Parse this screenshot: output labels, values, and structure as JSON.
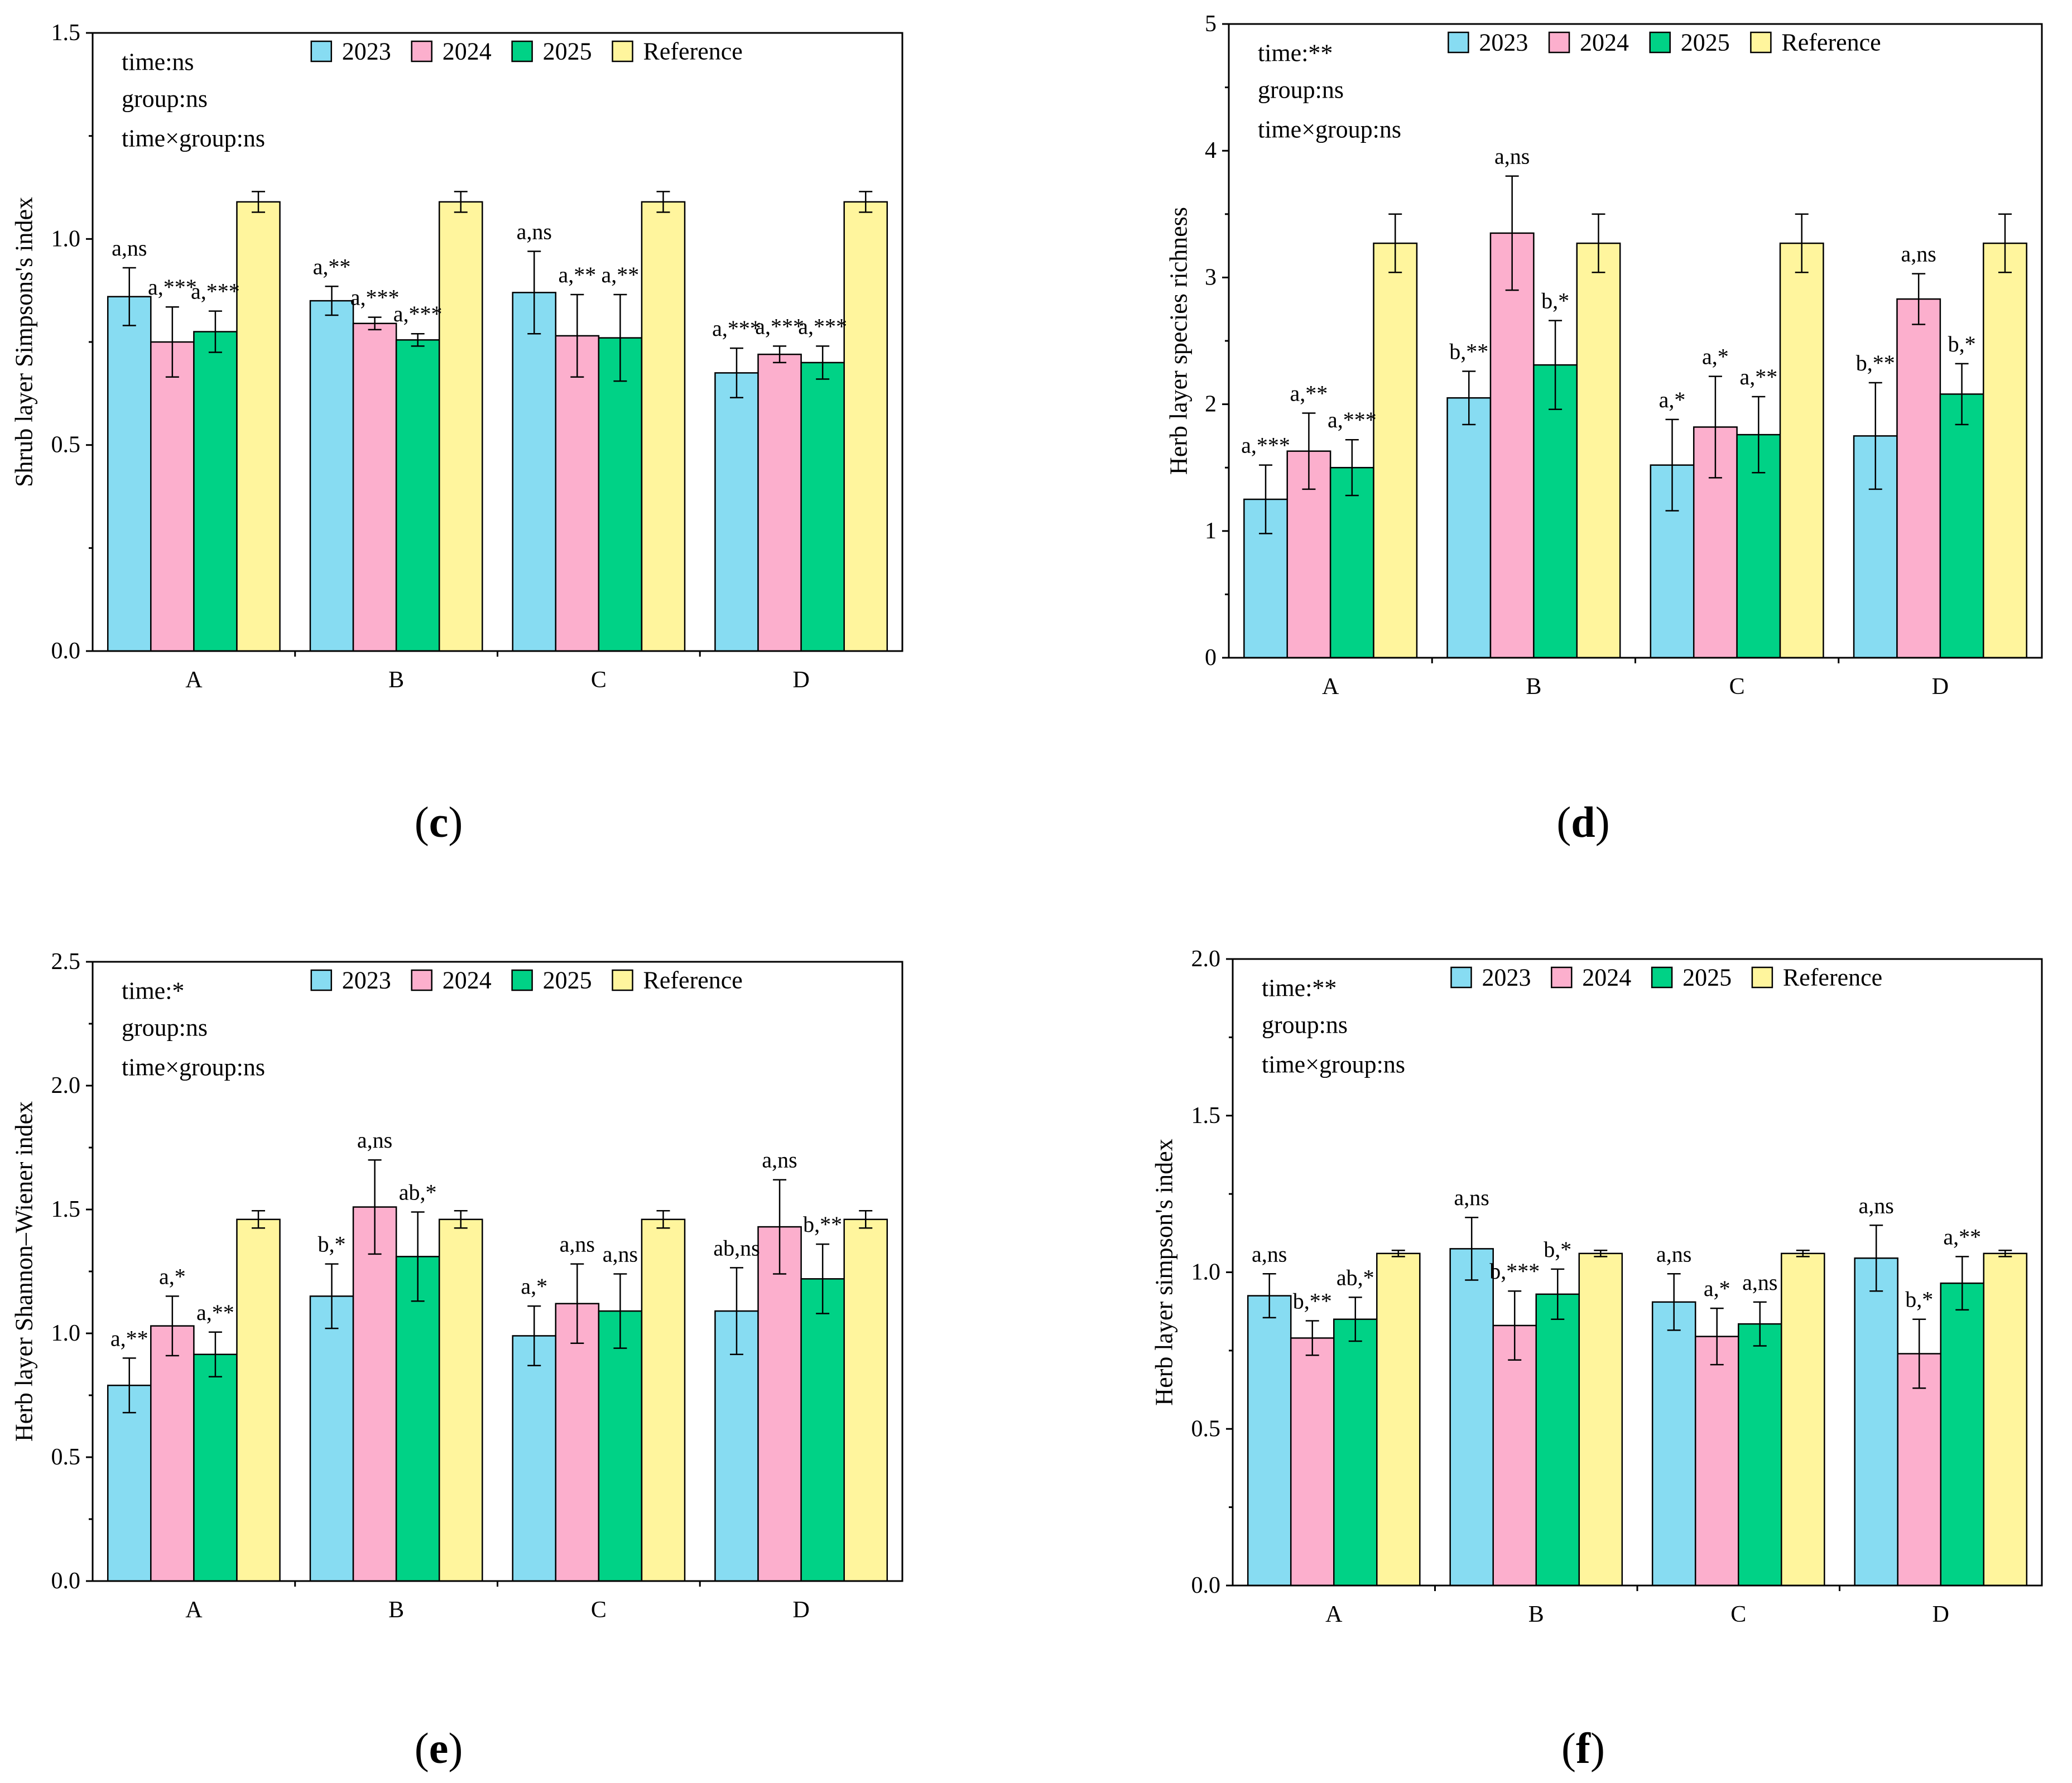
{
  "chart_data": [
    {
      "type": "bar",
      "panel_label": "(c)",
      "ylabel": "Shrub layer Simpsons's index",
      "ylim": [
        0,
        1.5
      ],
      "yticks": [
        "0.0",
        "0.5",
        "1.0",
        "1.5"
      ],
      "minor_step": 0.25,
      "categories": [
        "A",
        "B",
        "C",
        "D"
      ],
      "stats": [
        "time:ns",
        "group:ns",
        "time×group:ns"
      ],
      "series": [
        {
          "name": "2023",
          "color": "#87DCF2",
          "values": [
            0.86,
            0.85,
            0.87,
            0.675
          ],
          "errors": [
            0.07,
            0.035,
            0.1,
            0.06
          ],
          "labels": [
            "a,ns",
            "a,**",
            "a,ns",
            "a,***"
          ]
        },
        {
          "name": "2024",
          "color": "#FCAFCD",
          "values": [
            0.75,
            0.795,
            0.765,
            0.72
          ],
          "errors": [
            0.085,
            0.015,
            0.1,
            0.02
          ],
          "labels": [
            "a,***",
            "a,***",
            "a,**",
            "a,***"
          ]
        },
        {
          "name": "2025",
          "color": "#00D286",
          "values": [
            0.775,
            0.755,
            0.76,
            0.7
          ],
          "errors": [
            0.05,
            0.015,
            0.105,
            0.04
          ],
          "labels": [
            "a,***",
            "a,***",
            "a,**",
            "a,***"
          ]
        },
        {
          "name": "Reference",
          "color": "#FFF59D",
          "values": [
            1.09,
            1.09,
            1.09,
            1.09
          ],
          "errors": [
            0.025,
            0.025,
            0.025,
            0.025
          ]
        }
      ]
    },
    {
      "type": "bar",
      "panel_label": "(d)",
      "ylabel": "Herb layer species richness",
      "ylim": [
        0,
        5
      ],
      "yticks": [
        "0",
        "1",
        "2",
        "3",
        "4",
        "5"
      ],
      "minor_step": 0.5,
      "categories": [
        "A",
        "B",
        "C",
        "D"
      ],
      "stats": [
        "time:**",
        "group:ns",
        "time×group:ns"
      ],
      "series": [
        {
          "name": "2023",
          "color": "#87DCF2",
          "values": [
            1.25,
            2.05,
            1.52,
            1.75
          ],
          "errors": [
            0.27,
            0.21,
            0.36,
            0.42
          ],
          "labels": [
            "a,***",
            "b,**",
            "a,*",
            "b,**"
          ]
        },
        {
          "name": "2024",
          "color": "#FCAFCD",
          "values": [
            1.63,
            3.35,
            1.82,
            2.83
          ],
          "errors": [
            0.3,
            0.45,
            0.4,
            0.2
          ],
          "labels": [
            "a,**",
            "a,ns",
            "a,*",
            "a,ns"
          ]
        },
        {
          "name": "2025",
          "color": "#00D286",
          "values": [
            1.5,
            2.31,
            1.76,
            2.08
          ],
          "errors": [
            0.22,
            0.35,
            0.3,
            0.24
          ],
          "labels": [
            "a,***",
            "b,*",
            "a,**",
            "b,*"
          ]
        },
        {
          "name": "Reference",
          "color": "#FFF59D",
          "values": [
            3.27,
            3.27,
            3.27,
            3.27
          ],
          "errors": [
            0.23,
            0.23,
            0.23,
            0.23
          ]
        }
      ]
    },
    {
      "type": "bar",
      "panel_label": "(e)",
      "ylabel": "Herb layer Shannon–Wiener index",
      "ylim": [
        0,
        2.5
      ],
      "yticks": [
        "0.0",
        "0.5",
        "1.0",
        "1.5",
        "2.0",
        "2.5"
      ],
      "minor_step": 0.25,
      "categories": [
        "A",
        "B",
        "C",
        "D"
      ],
      "stats": [
        "time:*",
        "group:ns",
        "time×group:ns"
      ],
      "series": [
        {
          "name": "2023",
          "color": "#87DCF2",
          "values": [
            0.79,
            1.15,
            0.99,
            1.09
          ],
          "errors": [
            0.11,
            0.13,
            0.12,
            0.175
          ],
          "labels": [
            "a,**",
            "b,*",
            "a,*",
            "ab,ns"
          ]
        },
        {
          "name": "2024",
          "color": "#FCAFCD",
          "values": [
            1.03,
            1.51,
            1.12,
            1.43
          ],
          "errors": [
            0.12,
            0.19,
            0.16,
            0.19
          ],
          "labels": [
            "a,*",
            "a,ns",
            "a,ns",
            "a,ns"
          ]
        },
        {
          "name": "2025",
          "color": "#00D286",
          "values": [
            0.915,
            1.31,
            1.09,
            1.22
          ],
          "errors": [
            0.09,
            0.18,
            0.15,
            0.14
          ],
          "labels": [
            "a,**",
            "ab,*",
            "a,ns",
            "b,**"
          ]
        },
        {
          "name": "Reference",
          "color": "#FFF59D",
          "values": [
            1.46,
            1.46,
            1.46,
            1.46
          ],
          "errors": [
            0.035,
            0.035,
            0.035,
            0.035
          ]
        }
      ]
    },
    {
      "type": "bar",
      "panel_label": "(f)",
      "ylabel": "Herb layer simpson's index",
      "ylim": [
        0,
        2.0
      ],
      "yticks": [
        "0.0",
        "0.5",
        "1.0",
        "1.5",
        "2.0"
      ],
      "minor_step": 0.25,
      "categories": [
        "A",
        "B",
        "C",
        "D"
      ],
      "stats": [
        "time:**",
        "group:ns",
        "time×group:ns"
      ],
      "series": [
        {
          "name": "2023",
          "color": "#87DCF2",
          "values": [
            0.925,
            1.075,
            0.905,
            1.045
          ],
          "errors": [
            0.07,
            0.1,
            0.09,
            0.105
          ],
          "labels": [
            "a,ns",
            "a,ns",
            "a,ns",
            "a,ns"
          ]
        },
        {
          "name": "2024",
          "color": "#FCAFCD",
          "values": [
            0.79,
            0.83,
            0.795,
            0.74
          ],
          "errors": [
            0.055,
            0.11,
            0.09,
            0.11
          ],
          "labels": [
            "b,**",
            "b,***",
            "a,*",
            "b,*"
          ]
        },
        {
          "name": "2025",
          "color": "#00D286",
          "values": [
            0.85,
            0.93,
            0.835,
            0.965
          ],
          "errors": [
            0.07,
            0.08,
            0.07,
            0.085
          ],
          "labels": [
            "ab,*",
            "b,*",
            "a,ns",
            "a,**"
          ]
        },
        {
          "name": "Reference",
          "color": "#FFF59D",
          "values": [
            1.06,
            1.06,
            1.06,
            1.06
          ],
          "errors": [
            0.01,
            0.01,
            0.01,
            0.01
          ]
        }
      ]
    }
  ]
}
